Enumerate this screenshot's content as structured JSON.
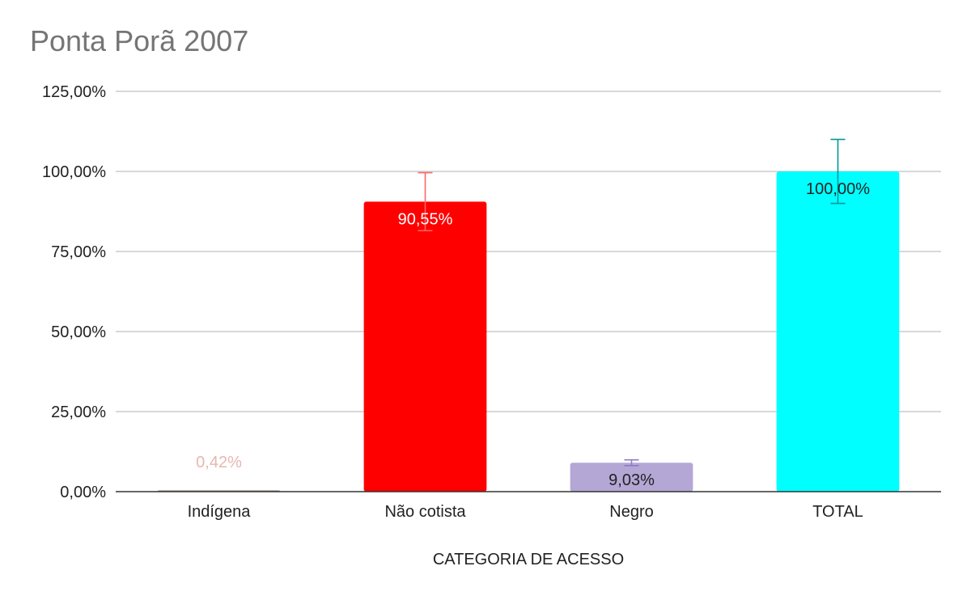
{
  "title": "Ponta Porã 2007",
  "chart_data": {
    "type": "bar",
    "title": "Ponta Porã 2007",
    "xlabel": "CATEGORIA DE ACESSO",
    "ylabel": "",
    "ylim": [
      0,
      125
    ],
    "yticks": [
      0,
      25,
      50,
      75,
      100,
      125
    ],
    "ytick_labels": [
      "0,00%",
      "25,00%",
      "50,00%",
      "75,00%",
      "100,00%",
      "125,00%"
    ],
    "grid": true,
    "legend": "none",
    "categories": [
      "Indígena",
      "Não cotista",
      "Negro",
      "TOTAL"
    ],
    "values": [
      0.42,
      90.55,
      9.03,
      100.0
    ],
    "data_labels": [
      "0,42%",
      "90,55%",
      "9,03%",
      "100,00%"
    ],
    "error_bars": [
      0.04,
      9.05,
      0.9,
      10.0
    ],
    "colors": [
      "#a1887f",
      "#ff0000",
      "#b4a7d6",
      "#00ffff"
    ],
    "label_colors": [
      "#e6b8af",
      "#ffffff",
      "#222222",
      "#222222"
    ],
    "error_bar_colors": [
      "#a1887f",
      "#ff6666",
      "#8e7cc3",
      "#009999"
    ]
  }
}
